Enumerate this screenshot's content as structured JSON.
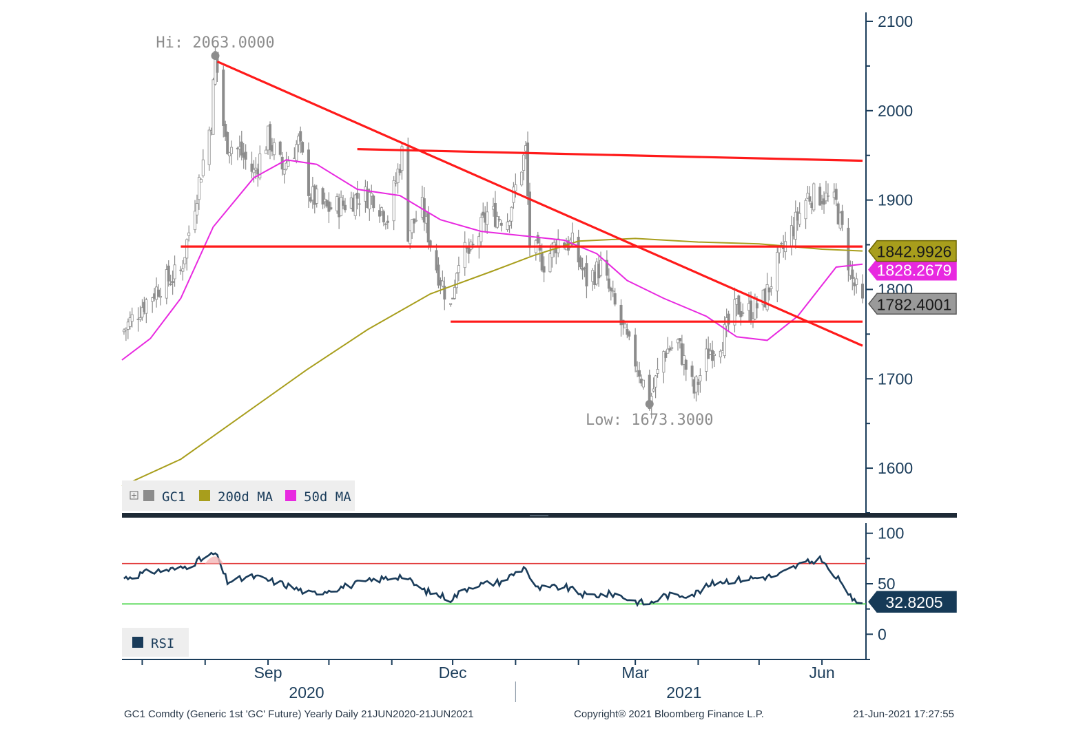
{
  "chart_data": [
    {
      "type": "candlestick",
      "instrument": "GC1",
      "ylim": [
        1550,
        2110
      ],
      "y_ticks": [
        "2100",
        "2000",
        "1900",
        "1800",
        "1700",
        "1600"
      ],
      "period_start": "2020-06-21",
      "period_end": "2021-06-21",
      "x_month_labels": [
        {
          "label": "Sep",
          "date": "2020-09-01"
        },
        {
          "label": "Dec",
          "date": "2020-12-01"
        },
        {
          "label": "Mar",
          "date": "2021-03-01"
        },
        {
          "label": "Jun",
          "date": "2021-06-01"
        }
      ],
      "x_year_labels": [
        {
          "label": "2020",
          "date": "2020-09-20"
        },
        {
          "label": "2021",
          "date": "2021-03-25"
        }
      ],
      "year_divider_date": "2021-01-01",
      "price_series": {
        "name": "GC1",
        "color": "#8c8c8c",
        "closes": [
          [
            "2020-06-21",
            1752
          ],
          [
            "2020-07-01",
            1782
          ],
          [
            "2020-07-10",
            1805
          ],
          [
            "2020-07-20",
            1820
          ],
          [
            "2020-07-27",
            1898
          ],
          [
            "2020-08-04",
            1990
          ],
          [
            "2020-08-06",
            2063
          ],
          [
            "2020-08-11",
            1965
          ],
          [
            "2020-08-18",
            1955
          ],
          [
            "2020-08-25",
            1930
          ],
          [
            "2020-09-01",
            1970
          ],
          [
            "2020-09-08",
            1935
          ],
          [
            "2020-09-16",
            1965
          ],
          [
            "2020-09-22",
            1905
          ],
          [
            "2020-09-30",
            1890
          ],
          [
            "2020-10-08",
            1895
          ],
          [
            "2020-10-16",
            1905
          ],
          [
            "2020-10-23",
            1905
          ],
          [
            "2020-10-30",
            1880
          ],
          [
            "2020-11-06",
            1952
          ],
          [
            "2020-11-09",
            1865
          ],
          [
            "2020-11-16",
            1890
          ],
          [
            "2020-11-23",
            1825
          ],
          [
            "2020-11-30",
            1780
          ],
          [
            "2020-12-04",
            1840
          ],
          [
            "2020-12-10",
            1840
          ],
          [
            "2020-12-18",
            1885
          ],
          [
            "2020-12-28",
            1880
          ],
          [
            "2021-01-06",
            1955
          ],
          [
            "2021-01-08",
            1850
          ],
          [
            "2021-01-15",
            1830
          ],
          [
            "2021-01-22",
            1855
          ],
          [
            "2021-01-29",
            1850
          ],
          [
            "2021-02-05",
            1810
          ],
          [
            "2021-02-12",
            1825
          ],
          [
            "2021-02-19",
            1780
          ],
          [
            "2021-02-26",
            1735
          ],
          [
            "2021-03-03",
            1710
          ],
          [
            "2021-03-08",
            1673
          ],
          [
            "2021-03-15",
            1730
          ],
          [
            "2021-03-22",
            1740
          ],
          [
            "2021-03-30",
            1685
          ],
          [
            "2021-04-06",
            1730
          ],
          [
            "2021-04-13",
            1745
          ],
          [
            "2021-04-20",
            1780
          ],
          [
            "2021-04-27",
            1775
          ],
          [
            "2021-05-04",
            1790
          ],
          [
            "2021-05-11",
            1835
          ],
          [
            "2021-05-18",
            1870
          ],
          [
            "2021-05-25",
            1905
          ],
          [
            "2021-06-01",
            1905
          ],
          [
            "2021-06-08",
            1895
          ],
          [
            "2021-06-11",
            1865
          ],
          [
            "2021-06-16",
            1810
          ],
          [
            "2021-06-21",
            1782
          ]
        ],
        "high": {
          "label": "Hi: 2063.0000",
          "date": "2020-08-06",
          "value": 2063
        },
        "low": {
          "label": "Low: 1673.3000",
          "date": "2021-03-08",
          "value": 1673.3
        },
        "last": {
          "label": "1782.4001",
          "value": 1782.4001,
          "color": "#8c8c8c"
        }
      },
      "ma200": {
        "name": "200d MA",
        "color": "#a89e1c",
        "points": [
          [
            "2020-06-21",
            1580
          ],
          [
            "2020-07-20",
            1610
          ],
          [
            "2020-08-20",
            1660
          ],
          [
            "2020-09-20",
            1710
          ],
          [
            "2020-10-20",
            1755
          ],
          [
            "2020-11-20",
            1795
          ],
          [
            "2020-12-20",
            1820
          ],
          [
            "2021-01-10",
            1838
          ],
          [
            "2021-02-01",
            1854
          ],
          [
            "2021-03-01",
            1857
          ],
          [
            "2021-04-01",
            1853
          ],
          [
            "2021-05-01",
            1851
          ],
          [
            "2021-06-01",
            1845
          ],
          [
            "2021-06-21",
            1842.99
          ]
        ],
        "last": {
          "label": "1842.9926",
          "value": 1842.9926
        }
      },
      "ma50": {
        "name": "50d MA",
        "color": "#e829e0",
        "points": [
          [
            "2020-06-21",
            1721
          ],
          [
            "2020-07-05",
            1745
          ],
          [
            "2020-07-20",
            1790
          ],
          [
            "2020-08-05",
            1870
          ],
          [
            "2020-08-25",
            1925
          ],
          [
            "2020-09-10",
            1945
          ],
          [
            "2020-09-25",
            1940
          ],
          [
            "2020-10-15",
            1912
          ],
          [
            "2020-11-05",
            1905
          ],
          [
            "2020-11-25",
            1878
          ],
          [
            "2020-12-15",
            1865
          ],
          [
            "2021-01-05",
            1860
          ],
          [
            "2021-01-25",
            1855
          ],
          [
            "2021-02-10",
            1840
          ],
          [
            "2021-02-25",
            1810
          ],
          [
            "2021-03-15",
            1790
          ],
          [
            "2021-04-05",
            1770
          ],
          [
            "2021-04-20",
            1747
          ],
          [
            "2021-05-05",
            1743
          ],
          [
            "2021-05-20",
            1770
          ],
          [
            "2021-06-08",
            1825
          ],
          [
            "2021-06-21",
            1828.27
          ]
        ],
        "last": {
          "label": "1828.2679",
          "value": 1828.2679
        }
      },
      "trendlines": [
        {
          "color": "#ff1a1a",
          "from": [
            "2020-08-07",
            2055
          ],
          "to": [
            "2021-06-21",
            1737
          ]
        },
        {
          "color": "#ff1a1a",
          "from": [
            "2020-10-15",
            1957
          ],
          "to": [
            "2021-06-21",
            1944
          ]
        },
        {
          "color": "#ff1a1a",
          "from": [
            "2020-07-20",
            1848
          ],
          "to": [
            "2021-06-21",
            1848
          ]
        },
        {
          "color": "#ff1a1a",
          "from": [
            "2020-11-30",
            1764
          ],
          "to": [
            "2021-06-21",
            1764
          ]
        }
      ],
      "legend": [
        {
          "label": "GC1",
          "color": "#8c8c8c"
        },
        {
          "label": "200d MA",
          "color": "#a89e1c"
        },
        {
          "label": "50d MA",
          "color": "#e829e0"
        }
      ]
    },
    {
      "type": "line",
      "ylim": [
        -25,
        110
      ],
      "y_ticks": [
        "100",
        "50",
        "0"
      ],
      "series": [
        {
          "name": "RSI",
          "color": "#1a3c5a",
          "values": [
            [
              "2020-06-21",
              55
            ],
            [
              "2020-07-05",
              62
            ],
            [
              "2020-07-20",
              65
            ],
            [
              "2020-08-06",
              80
            ],
            [
              "2020-08-12",
              52
            ],
            [
              "2020-08-25",
              57
            ],
            [
              "2020-09-08",
              50
            ],
            [
              "2020-09-22",
              40
            ],
            [
              "2020-10-08",
              47
            ],
            [
              "2020-10-22",
              53
            ],
            [
              "2020-11-06",
              58
            ],
            [
              "2020-11-16",
              44
            ],
            [
              "2020-11-30",
              35
            ],
            [
              "2020-12-10",
              48
            ],
            [
              "2020-12-25",
              52
            ],
            [
              "2021-01-06",
              67
            ],
            [
              "2021-01-10",
              45
            ],
            [
              "2021-01-25",
              47
            ],
            [
              "2021-02-05",
              38
            ],
            [
              "2021-02-19",
              40
            ],
            [
              "2021-02-28",
              33
            ],
            [
              "2021-03-08",
              30
            ],
            [
              "2021-03-15",
              38
            ],
            [
              "2021-03-30",
              40
            ],
            [
              "2021-04-10",
              52
            ],
            [
              "2021-04-25",
              55
            ],
            [
              "2021-05-10",
              58
            ],
            [
              "2021-05-20",
              68
            ],
            [
              "2021-06-01",
              75
            ],
            [
              "2021-06-05",
              60
            ],
            [
              "2021-06-12",
              50
            ],
            [
              "2021-06-16",
              32
            ],
            [
              "2021-06-21",
              32.82
            ]
          ]
        }
      ],
      "overbought": 70,
      "oversold": 30,
      "last": {
        "label": "32.8205",
        "value": 32.8205
      },
      "legend": [
        {
          "label": "RSI",
          "color": "#1a3c5a"
        }
      ]
    }
  ],
  "footer": {
    "left": "GC1 Comdty (Generic 1st 'GC' Future) Yearly  Daily 21JUN2020-21JUN2021",
    "center": "Copyright® 2021 Bloomberg Finance L.P.",
    "right": "21-Jun-2021 17:27:55"
  }
}
